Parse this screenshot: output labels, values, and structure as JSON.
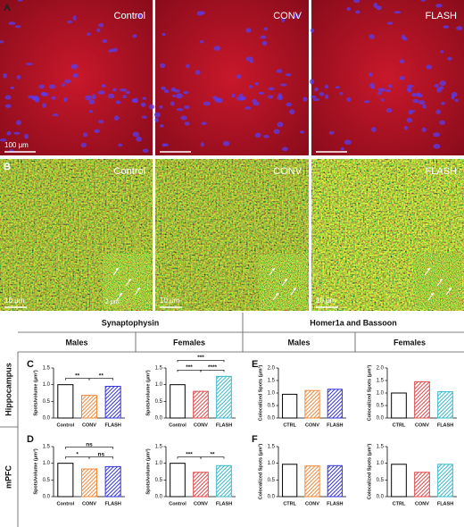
{
  "images_a": {
    "letter": "A",
    "labels": [
      "Control",
      "CONV",
      "FLASH"
    ],
    "scale": "100 μm"
  },
  "images_b": {
    "letter": "B",
    "labels": [
      "Control",
      "CONV",
      "FLASH"
    ],
    "scale": "10 μm",
    "inset_scale": "2 μm"
  },
  "header": {
    "left": "Synaptophysin",
    "right": "Homer1a and Bassoon",
    "sexes": [
      "Males",
      "Females",
      "Males",
      "Females"
    ]
  },
  "rows": [
    "Hippocampus",
    "mPFC"
  ],
  "panel_letters": [
    "C",
    "E",
    "D",
    "F"
  ],
  "chart_data": [
    {
      "type": "bar",
      "categories": [
        "Control",
        "CONV",
        "FLASH"
      ],
      "values": [
        1.0,
        0.68,
        0.95
      ],
      "colors": [
        "#ffffff",
        "#f0883a",
        "#3434d8"
      ],
      "ylabel": "Spots/volume (μm³)",
      "ylim": [
        0,
        1.5
      ],
      "yticks": [
        {
          "value": 0,
          "label": "0.0"
        },
        {
          "value": 0.5,
          "label": "0.5"
        },
        {
          "value": 1,
          "label": "1.0"
        },
        {
          "value": 1.5,
          "label": "1.5"
        }
      ],
      "annotations": [
        "**",
        "**"
      ]
    },
    {
      "type": "bar",
      "categories": [
        "Control",
        "CONV",
        "FLASH"
      ],
      "values": [
        1.0,
        0.8,
        1.25
      ],
      "colors": [
        "#ffffff",
        "#e0484a",
        "#38b8c8"
      ],
      "ylabel": "Spots/volume (μm³)",
      "ylim": [
        0,
        1.5
      ],
      "yticks": [
        {
          "value": 0,
          "label": "0.0"
        },
        {
          "value": 0.5,
          "label": "0.5"
        },
        {
          "value": 1,
          "label": "1.0"
        },
        {
          "value": 1.5,
          "label": "1.5"
        }
      ],
      "annotations": [
        "***",
        "****",
        "***"
      ]
    },
    {
      "type": "bar",
      "categories": [
        "CTRL",
        "CONV",
        "FLASH"
      ],
      "values": [
        0.95,
        1.1,
        1.15
      ],
      "colors": [
        "#ffffff",
        "#f0883a",
        "#3434d8"
      ],
      "ylabel": "Colocalized Spots (μm³)",
      "ylim": [
        0,
        2
      ],
      "yticks": [
        {
          "value": 0,
          "label": "0.0"
        },
        {
          "value": 0.5,
          "label": "0.5"
        },
        {
          "value": 1,
          "label": "1.0"
        },
        {
          "value": 1.5,
          "label": "1.5"
        },
        {
          "value": 2,
          "label": "2.0"
        }
      ],
      "annotations": []
    },
    {
      "type": "bar",
      "categories": [
        "CTRL",
        "CONV",
        "FLASH"
      ],
      "values": [
        1.0,
        1.45,
        1.05
      ],
      "colors": [
        "#ffffff",
        "#e0484a",
        "#38b8c8"
      ],
      "ylabel": "Colocalized Spots (μm³)",
      "ylim": [
        0,
        2
      ],
      "yticks": [
        {
          "value": 0,
          "label": "0.0"
        },
        {
          "value": 0.5,
          "label": "0.5"
        },
        {
          "value": 1,
          "label": "1.0"
        },
        {
          "value": 1.5,
          "label": "1.5"
        },
        {
          "value": 2,
          "label": "2.0"
        }
      ],
      "annotations": []
    },
    {
      "type": "bar",
      "categories": [
        "Control",
        "CONV",
        "FLASH"
      ],
      "values": [
        1.0,
        0.83,
        0.9
      ],
      "colors": [
        "#ffffff",
        "#f0883a",
        "#3434d8"
      ],
      "ylabel": "Spots/volume (μm³)",
      "ylim": [
        0,
        1.5
      ],
      "yticks": [
        {
          "value": 0,
          "label": "0.0"
        },
        {
          "value": 0.5,
          "label": "0.5"
        },
        {
          "value": 1,
          "label": "1.0"
        },
        {
          "value": 1.5,
          "label": "1.5"
        }
      ],
      "annotations": [
        "*",
        "ns",
        "ns"
      ]
    },
    {
      "type": "bar",
      "categories": [
        "Control",
        "CONV",
        "FLASH"
      ],
      "values": [
        1.0,
        0.73,
        0.93
      ],
      "colors": [
        "#ffffff",
        "#e0484a",
        "#38b8c8"
      ],
      "ylabel": "Spots/volume (μm³)",
      "ylim": [
        0,
        1.5
      ],
      "yticks": [
        {
          "value": 0,
          "label": "0.0"
        },
        {
          "value": 0.5,
          "label": "0.5"
        },
        {
          "value": 1,
          "label": "1.0"
        },
        {
          "value": 1.5,
          "label": "1.5"
        }
      ],
      "annotations": [
        "***",
        "**"
      ]
    },
    {
      "type": "bar",
      "categories": [
        "CTRL",
        "CONV",
        "FLASH"
      ],
      "values": [
        0.97,
        0.92,
        0.93
      ],
      "colors": [
        "#ffffff",
        "#f0883a",
        "#3434d8"
      ],
      "ylabel": "Colocalized Spots (μm³)",
      "ylim": [
        0,
        1.5
      ],
      "yticks": [
        {
          "value": 0,
          "label": "0.0"
        },
        {
          "value": 0.5,
          "label": "0.5"
        },
        {
          "value": 1,
          "label": "1.0"
        },
        {
          "value": 1.5,
          "label": "1.5"
        }
      ],
      "annotations": []
    },
    {
      "type": "bar",
      "categories": [
        "CTRL",
        "CONV",
        "FLASH"
      ],
      "values": [
        0.97,
        0.73,
        0.97
      ],
      "colors": [
        "#ffffff",
        "#e0484a",
        "#38b8c8"
      ],
      "ylabel": "Colocalized Spots (μm³)",
      "ylim": [
        0,
        1.5
      ],
      "yticks": [
        {
          "value": 0,
          "label": "0.0"
        },
        {
          "value": 0.5,
          "label": "0.5"
        },
        {
          "value": 1,
          "label": "1.0"
        },
        {
          "value": 1.5,
          "label": "1.5"
        }
      ],
      "annotations": []
    }
  ]
}
